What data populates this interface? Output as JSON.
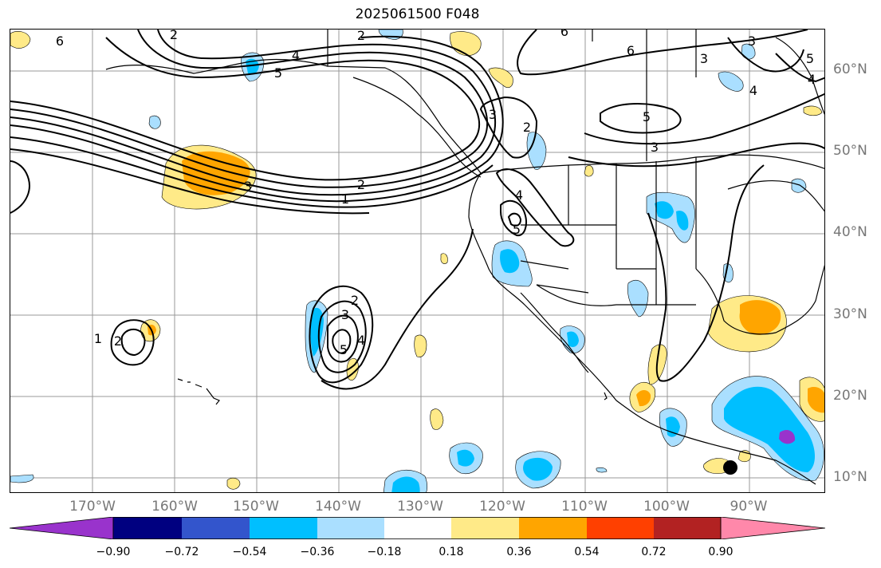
{
  "title": "2025061500 F048",
  "lat_labels": [
    "60°N",
    "50°N",
    "40°N",
    "30°N",
    "20°N",
    "10°N"
  ],
  "lon_labels": [
    "170°W",
    "160°W",
    "150°W",
    "140°W",
    "130°W",
    "120°W",
    "110°W",
    "100°W",
    "90°W"
  ],
  "colorbar": {
    "colors": [
      "#9933cc",
      "#000080",
      "#3355cc",
      "#00bfff",
      "#aadfff",
      "#ffffff",
      "#ffea88",
      "#ffa500",
      "#ff4000",
      "#b22222",
      "#ff88aa"
    ],
    "tick_labels": [
      "−0.90",
      "−0.72",
      "−0.54",
      "−0.36",
      "−0.18",
      "0.18",
      "0.36",
      "0.54",
      "0.72",
      "0.90"
    ]
  },
  "contour_labels": [
    "6",
    "2",
    "4",
    "5",
    "2",
    "6",
    "3",
    "3",
    "5",
    "3",
    "6",
    "4",
    "2",
    "1",
    "3",
    "4",
    "5",
    "3",
    "2",
    "4",
    "5",
    "1",
    "2",
    "4",
    "5",
    "3",
    "2"
  ],
  "marker": "black-dot"
}
